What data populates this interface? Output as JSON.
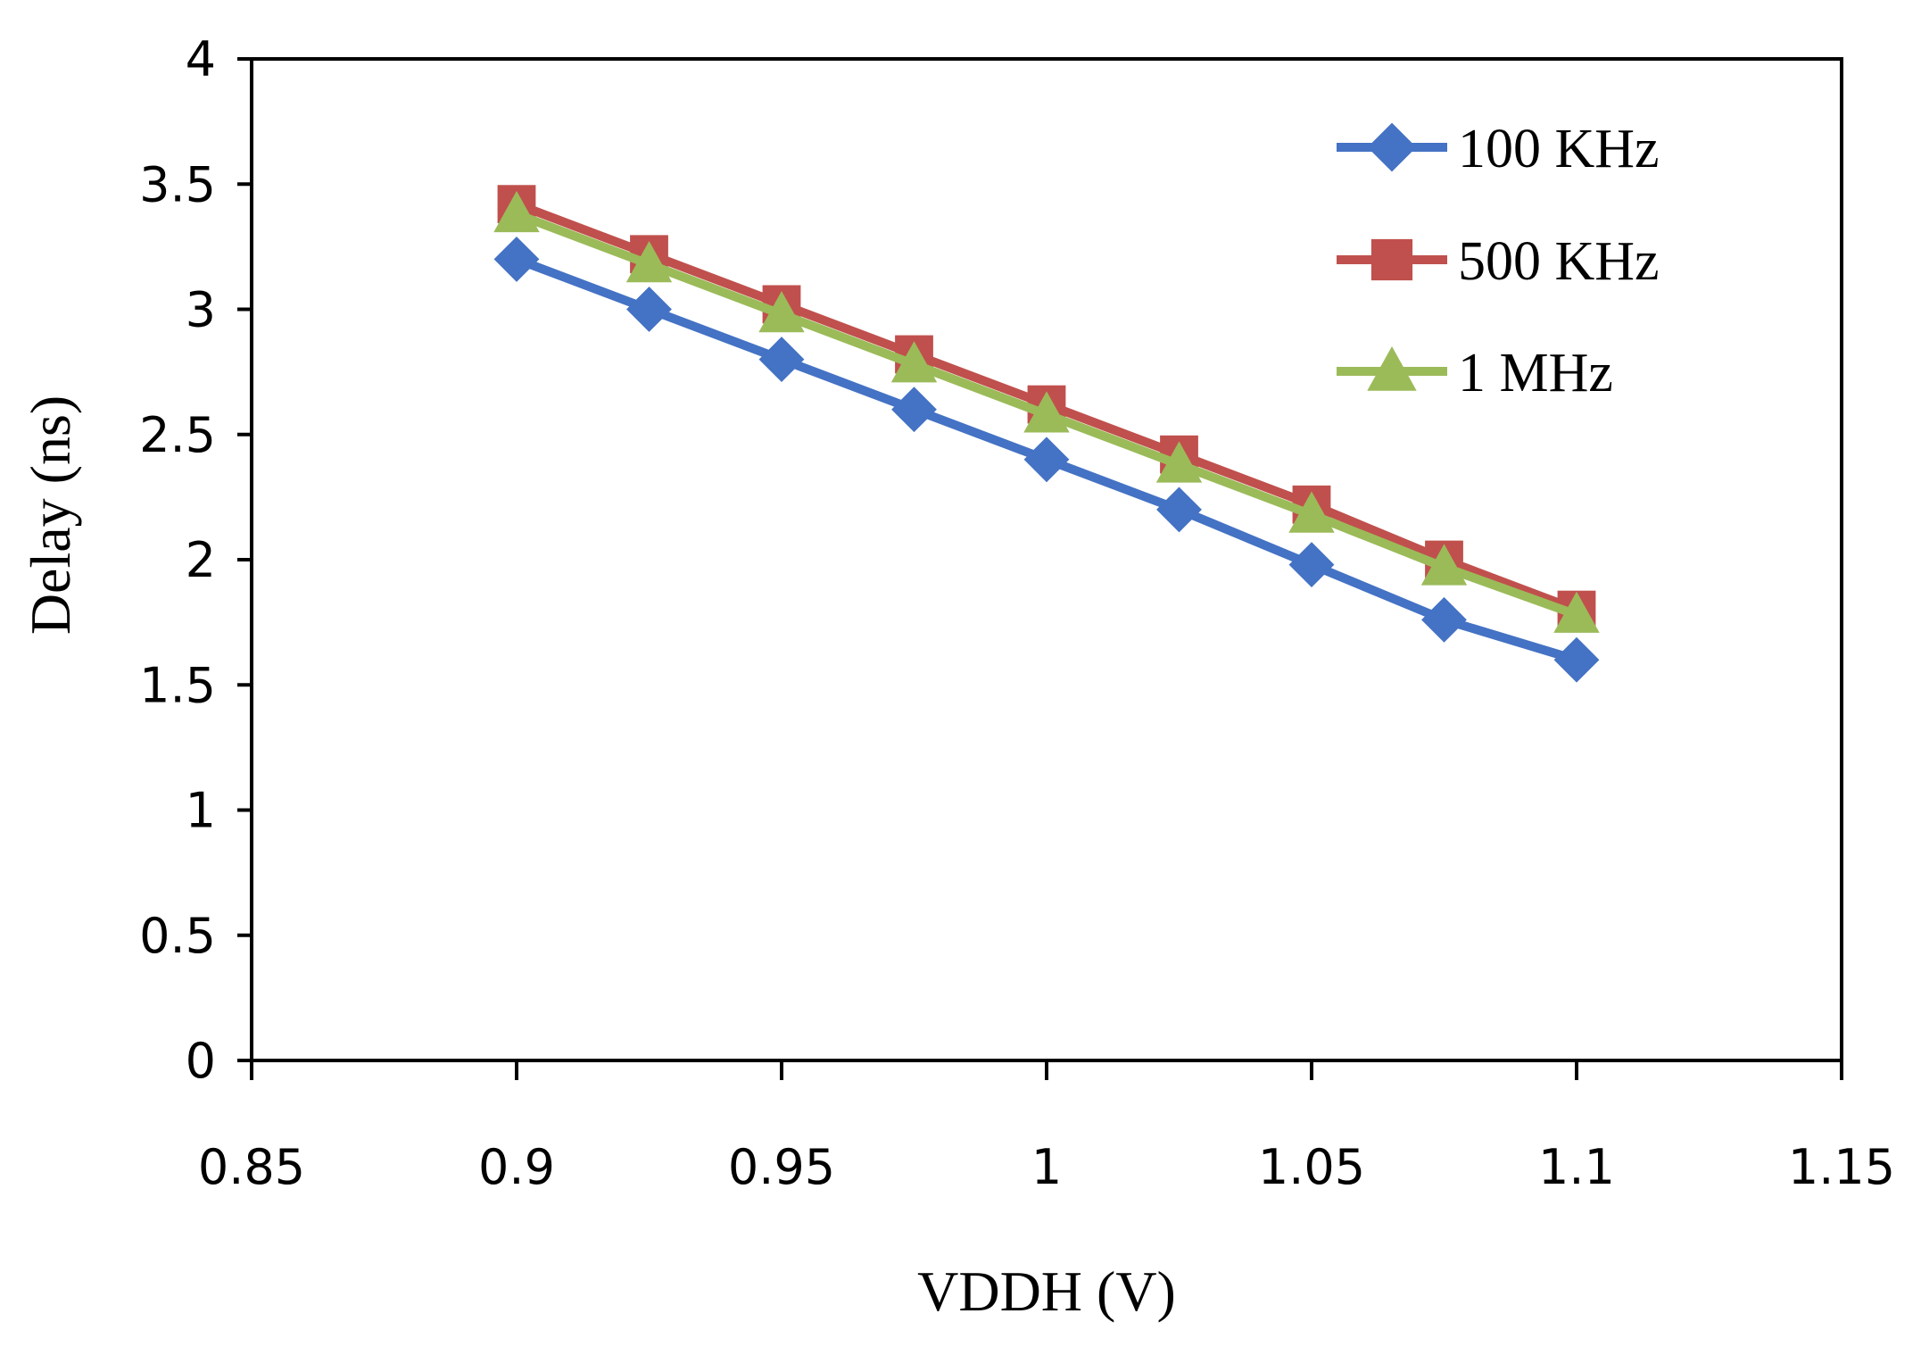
{
  "chart_data": {
    "type": "line",
    "title": "",
    "xlabel": "VDDH (V)",
    "ylabel": "Delay (ns)",
    "xlim": [
      0.85,
      1.15
    ],
    "ylim": [
      0,
      4
    ],
    "x_ticks": [
      "0.85",
      "0.9",
      "0.95",
      "1",
      "1.05",
      "1.1",
      "1.15"
    ],
    "x_tick_values": [
      0.85,
      0.9,
      0.95,
      1.0,
      1.05,
      1.1,
      1.15
    ],
    "y_ticks": [
      "0",
      "0.5",
      "1",
      "1.5",
      "2",
      "2.5",
      "3",
      "3.5",
      "4"
    ],
    "y_tick_values": [
      0,
      0.5,
      1,
      1.5,
      2,
      2.5,
      3,
      3.5,
      4
    ],
    "grid": false,
    "legend_position": "top-right",
    "x": [
      0.9,
      0.925,
      0.95,
      0.975,
      1.0,
      1.025,
      1.05,
      1.075,
      1.1
    ],
    "series": [
      {
        "name": "100 KHz",
        "marker": "diamond",
        "color": "#4472C4",
        "values": [
          3.2,
          3.0,
          2.8,
          2.6,
          2.4,
          2.2,
          1.98,
          1.76,
          1.6
        ]
      },
      {
        "name": "500 KHz",
        "marker": "square",
        "color": "#C0504D",
        "values": [
          3.42,
          3.22,
          3.02,
          2.82,
          2.62,
          2.42,
          2.22,
          2.0,
          1.8
        ]
      },
      {
        "name": "1 MHz",
        "marker": "triangle",
        "color": "#9BBB59",
        "values": [
          3.38,
          3.18,
          2.98,
          2.78,
          2.58,
          2.38,
          2.18,
          1.97,
          1.78
        ]
      }
    ]
  }
}
